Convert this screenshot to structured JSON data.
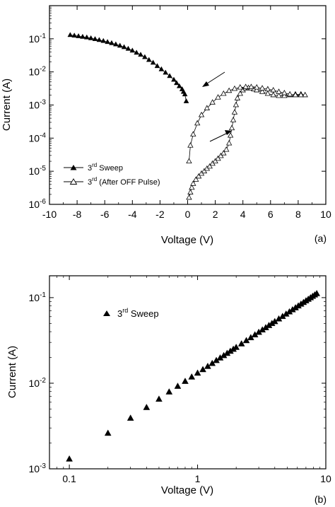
{
  "chart_data": [
    {
      "panel": "(a)",
      "type": "scatter",
      "xlabel": "Voltage (V)",
      "ylabel": "Current (A)",
      "xlim": [
        -10,
        10
      ],
      "ylim": [
        1e-06,
        1
      ],
      "y_scale": "log",
      "x_ticks": [
        -10,
        -8,
        -6,
        -4,
        -2,
        0,
        2,
        4,
        6,
        8,
        10
      ],
      "y_ticks": [
        {
          "value": 1e-06,
          "exp": "-6"
        },
        {
          "value": 1e-05,
          "exp": "-5"
        },
        {
          "value": 0.0001,
          "exp": "-4"
        },
        {
          "value": 0.001,
          "exp": "-3"
        },
        {
          "value": 0.01,
          "exp": "-2"
        },
        {
          "value": 0.1,
          "exp": "-1"
        }
      ],
      "legend_position": "lower-left",
      "series": [
        {
          "name": "3rd Sweep",
          "name_main": "3",
          "name_sup": "rd",
          "name_rest": " Sweep",
          "marker": "filled-triangle",
          "x": [
            -8.5,
            -8.2,
            -7.9,
            -7.6,
            -7.3,
            -7.0,
            -6.7,
            -6.4,
            -6.1,
            -5.8,
            -5.5,
            -5.2,
            -4.9,
            -4.6,
            -4.3,
            -4.0,
            -3.7,
            -3.4,
            -3.1,
            -2.8,
            -2.5,
            -2.2,
            -1.9,
            -1.6,
            -1.3,
            -1.0,
            -0.8,
            -0.6,
            -0.4,
            -0.3,
            -0.2,
            -0.1
          ],
          "y": [
            0.13,
            0.125,
            0.12,
            0.115,
            0.11,
            0.104,
            0.098,
            0.092,
            0.086,
            0.08,
            0.074,
            0.068,
            0.062,
            0.056,
            0.05,
            0.044,
            0.038,
            0.033,
            0.028,
            0.023,
            0.019,
            0.015,
            0.012,
            0.0095,
            0.0075,
            0.0058,
            0.0046,
            0.0037,
            0.003,
            0.0025,
            0.0021,
            0.0013
          ]
        },
        {
          "name": "3rd (After OFF Pulse)",
          "name_main": "3",
          "name_sup": "rd",
          "name_rest": " (After OFF Pulse)",
          "marker": "open-triangle",
          "x": [
            0.1,
            0.2,
            0.3,
            0.4,
            0.6,
            0.8,
            1.0,
            1.2,
            1.4,
            1.6,
            1.8,
            2.0,
            2.2,
            2.4,
            2.6,
            2.8,
            3.0,
            3.1,
            3.2,
            3.3,
            3.4,
            3.5,
            3.6,
            3.8,
            4.0,
            4.2,
            4.4,
            4.6,
            4.8,
            5.0,
            5.4,
            5.8,
            6.2,
            6.6,
            7.0,
            7.4,
            7.8,
            8.2,
            8.5,
            8.2,
            7.8,
            7.4,
            7.0,
            6.6,
            6.2,
            5.8,
            5.4,
            5.0,
            4.6,
            4.2,
            3.8,
            3.4,
            3.0,
            2.6,
            2.2,
            1.8,
            1.4,
            1.0,
            0.7,
            0.4,
            0.2,
            0.1
          ],
          "y": [
            1.6e-06,
            2.3e-06,
            3.2e-06,
            4.2e-06,
            5.6e-06,
            7e-06,
            8.5e-06,
            1e-05,
            1.2e-05,
            1.4e-05,
            1.7e-05,
            2e-05,
            2.4e-05,
            2.9e-05,
            3.5e-05,
            4.5e-05,
            7e-05,
            0.00012,
            0.0002,
            0.00035,
            0.0006,
            0.001,
            0.0016,
            0.0022,
            0.0028,
            0.0032,
            0.0033,
            0.0032,
            0.003,
            0.0028,
            0.0025,
            0.0022,
            0.002,
            0.0019,
            0.0019,
            0.002,
            0.0021,
            0.0021,
            0.002,
            0.002,
            0.002,
            0.0021,
            0.0023,
            0.0025,
            0.0028,
            0.003,
            0.0032,
            0.0034,
            0.0035,
            0.0035,
            0.0034,
            0.0031,
            0.0027,
            0.0022,
            0.0017,
            0.0012,
            0.0008,
            0.0005,
            0.00028,
            0.00013,
            6e-05,
            2e-05
          ]
        }
      ]
    },
    {
      "panel": "(b)",
      "type": "scatter",
      "xlabel": "Voltage (V)",
      "ylabel": "Current (A)",
      "xlim": [
        0.07,
        10
      ],
      "ylim": [
        0.001,
        0.18
      ],
      "x_scale": "log",
      "y_scale": "log",
      "x_ticks": [
        {
          "value": 0.1,
          "label": "0.1"
        },
        {
          "value": 1,
          "label": "1"
        },
        {
          "value": 10,
          "label": "10"
        }
      ],
      "y_ticks": [
        {
          "value": 0.001,
          "exp": "-3"
        },
        {
          "value": 0.01,
          "exp": "-2"
        },
        {
          "value": 0.1,
          "exp": "-1"
        }
      ],
      "legend_position": "top-left",
      "series": [
        {
          "name": "3rd Sweep",
          "name_main": "3",
          "name_sup": "rd",
          "name_rest": " Sweep",
          "marker": "filled-triangle",
          "x": [
            0.1,
            0.2,
            0.3,
            0.4,
            0.5,
            0.6,
            0.7,
            0.8,
            0.9,
            1.0,
            1.1,
            1.2,
            1.3,
            1.4,
            1.5,
            1.6,
            1.7,
            1.8,
            1.9,
            2.0,
            2.2,
            2.4,
            2.6,
            2.8,
            3.0,
            3.2,
            3.4,
            3.6,
            3.8,
            4.0,
            4.3,
            4.6,
            4.9,
            5.2,
            5.5,
            5.8,
            6.1,
            6.4,
            6.7,
            7.0,
            7.3,
            7.6,
            7.9,
            8.2,
            8.5
          ],
          "y": [
            0.0013,
            0.0026,
            0.0039,
            0.0052,
            0.0065,
            0.0079,
            0.0092,
            0.0105,
            0.0118,
            0.0131,
            0.0144,
            0.0157,
            0.017,
            0.0184,
            0.0197,
            0.021,
            0.0223,
            0.0236,
            0.0249,
            0.0262,
            0.0288,
            0.0314,
            0.034,
            0.0367,
            0.0393,
            0.0419,
            0.0445,
            0.0472,
            0.0498,
            0.0524,
            0.0563,
            0.0602,
            0.0642,
            0.0681,
            0.072,
            0.076,
            0.0799,
            0.0838,
            0.0877,
            0.0917,
            0.0956,
            0.0995,
            0.1035,
            0.1074,
            0.1113
          ]
        }
      ]
    }
  ],
  "annotations": {
    "arrow_a_upper": "arrow pointing toward lower voltage on return branch",
    "arrow_a_lower": "arrow pointing toward higher voltage on forward branch"
  }
}
